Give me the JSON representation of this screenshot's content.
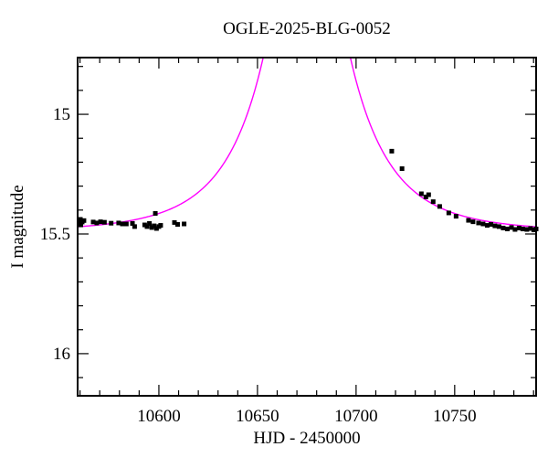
{
  "chart_data": {
    "type": "scatter",
    "title": "OGLE-2025-BLG-0052",
    "xlabel": "HJD - 2450000",
    "ylabel": "I magnitude",
    "grid": false,
    "legend": false,
    "x_axis": {
      "min": 10558.8,
      "max": 10791.3,
      "ticks_major": [
        10600,
        10650,
        10700,
        10750
      ],
      "tick_minor_step": 10
    },
    "y_axis": {
      "min": 14.763,
      "max": 16.176,
      "inverted": true,
      "ticks_major": [
        15,
        15.5,
        16
      ],
      "tick_minor_step": 0.1
    },
    "colors": {
      "data_points": "#000000",
      "model_curve": "#ff00ff",
      "frame": "#000000",
      "background": "#ffffff"
    },
    "model_curve": {
      "name": "paczynski-microlensing-fit",
      "t0": 10675,
      "tE": 40,
      "u0": 0.15,
      "I0": 15.49
    },
    "points": [
      [
        10559.5,
        15.45
      ],
      [
        10560.2,
        15.439
      ],
      [
        10560.4,
        15.462
      ],
      [
        10561.1,
        15.45
      ],
      [
        10562.0,
        15.444
      ],
      [
        10566.7,
        15.45
      ],
      [
        10568.5,
        15.454
      ],
      [
        10570.4,
        15.449
      ],
      [
        10572.4,
        15.451
      ],
      [
        10575.8,
        15.455
      ],
      [
        10579.6,
        15.454
      ],
      [
        10581.5,
        15.458
      ],
      [
        10583.5,
        15.458
      ],
      [
        10586.6,
        15.456
      ],
      [
        10587.7,
        15.469
      ],
      [
        10592.8,
        15.462
      ],
      [
        10594.0,
        15.469
      ],
      [
        10595.2,
        15.456
      ],
      [
        10596.4,
        15.473
      ],
      [
        10597.6,
        15.466
      ],
      [
        10598.8,
        15.477
      ],
      [
        10600.0,
        15.469
      ],
      [
        10600.9,
        15.464
      ],
      [
        10598.2,
        15.414
      ],
      [
        10607.9,
        15.452
      ],
      [
        10609.5,
        15.46
      ],
      [
        10612.8,
        15.458
      ],
      [
        10718.1,
        15.154
      ],
      [
        10723.3,
        15.227
      ],
      [
        10733.1,
        15.332
      ],
      [
        10735.4,
        15.345
      ],
      [
        10736.8,
        15.336
      ],
      [
        10739.1,
        15.365
      ],
      [
        10742.4,
        15.385
      ],
      [
        10747.0,
        15.412
      ],
      [
        10750.7,
        15.426
      ],
      [
        10757.0,
        15.443
      ],
      [
        10759.3,
        15.449
      ],
      [
        10762.1,
        15.454
      ],
      [
        10764.4,
        15.458
      ],
      [
        10766.5,
        15.464
      ],
      [
        10768.4,
        15.46
      ],
      [
        10770.4,
        15.466
      ],
      [
        10772.5,
        15.469
      ],
      [
        10774.6,
        15.475
      ],
      [
        10776.7,
        15.479
      ],
      [
        10778.8,
        15.473
      ],
      [
        10780.6,
        15.481
      ],
      [
        10782.7,
        15.475
      ],
      [
        10784.5,
        15.479
      ],
      [
        10786.6,
        15.481
      ],
      [
        10788.5,
        15.477
      ],
      [
        10790.1,
        15.483
      ],
      [
        10791.3,
        15.479
      ]
    ]
  }
}
